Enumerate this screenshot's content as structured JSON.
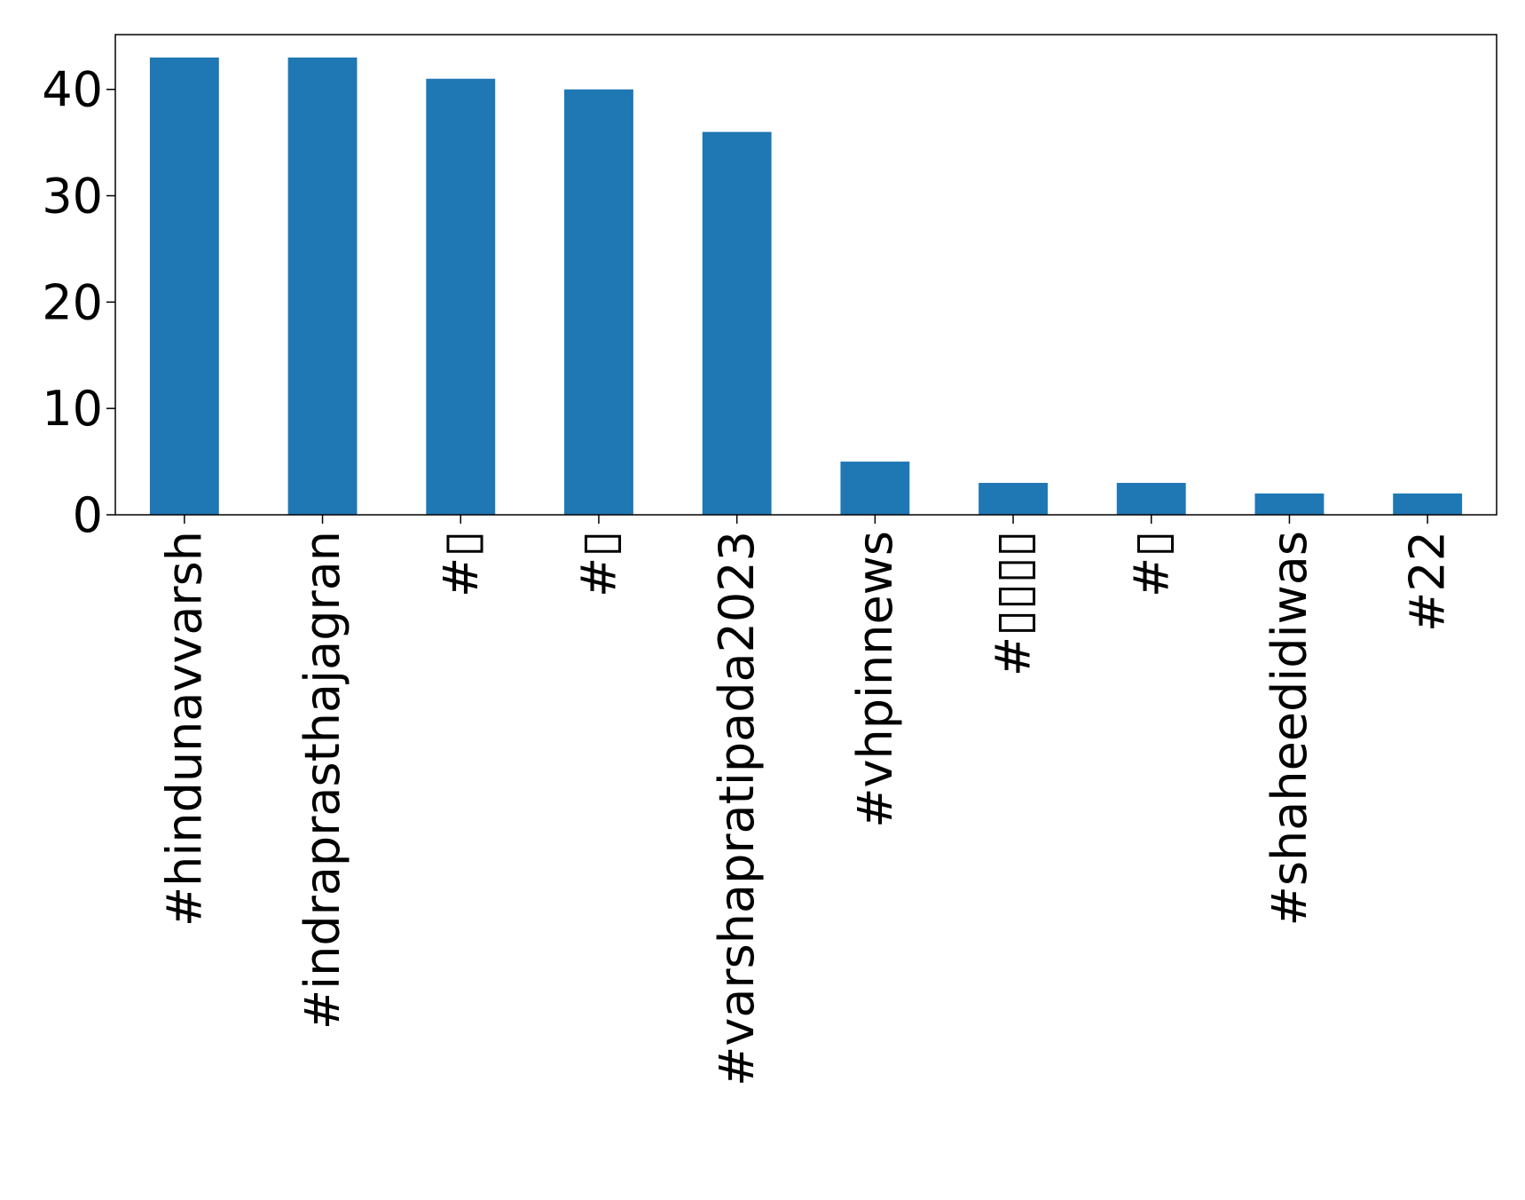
{
  "chart_data": {
    "type": "bar",
    "title": "",
    "xlabel": "",
    "ylabel": "",
    "categories": [
      "#hindunavvarsh",
      "#indraprasthajagran",
      "#▯",
      "#▯",
      "#varshapratipada2023",
      "#vhpinnews",
      "#▯▯▯▯",
      "#▯",
      "#shaheedidiwas",
      "#22"
    ],
    "values": [
      43,
      43,
      41,
      40,
      36,
      5,
      3,
      3,
      2,
      2
    ],
    "ylim": [
      0,
      45.15
    ],
    "yticks": [
      "0",
      "10",
      "20",
      "30",
      "40"
    ],
    "bar_color": "#1f77b4",
    "grid": false,
    "legend": "none"
  }
}
